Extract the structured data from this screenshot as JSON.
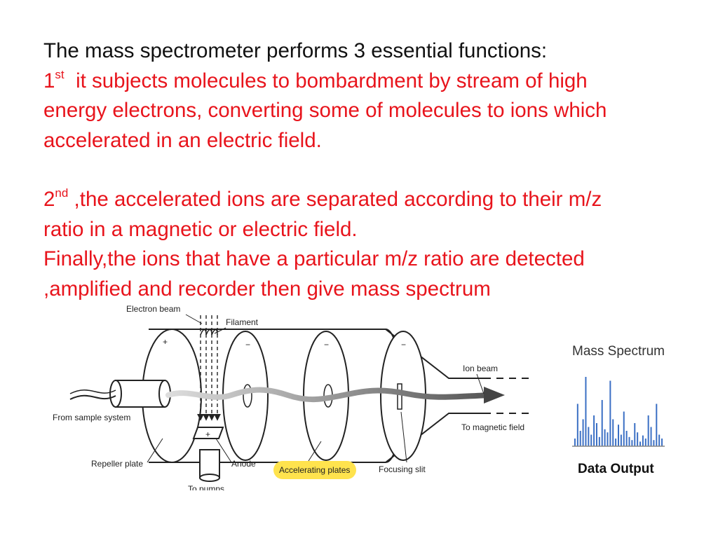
{
  "text": {
    "intro": "The mass spectrometer performs 3 essential functions:",
    "first": {
      "num": "1",
      "sup": "st",
      "line1": "it subjects molecules to bombardment by stream of high",
      "line2": "energy electrons, converting some of molecules to ions which"
    },
    "first_tail": "accelerated in an electric field.",
    "second": {
      "num": "2",
      "sup": "nd",
      "line1": ",the accelerated ions are separated according to their m/z"
    },
    "second_tail": "ratio in a magnetic or electric field.",
    "finally": {
      "line1": "Finally,the ions that have a particular m/z ratio are detected",
      "line2": ",amplified and recorder then give mass spectrum"
    }
  },
  "diagram": {
    "labels": {
      "electron_beam": "Electron beam",
      "filament": "Filament",
      "ion_beam": "Ion beam",
      "from_sample": "From sample system",
      "to_magnetic": "To magnetic field",
      "repeller": "Repeller plate",
      "anode": "Anode",
      "accelerating": "Accelerating plates",
      "focusing": "Focusing slit",
      "to_pumps": "To pumps"
    },
    "charges": {
      "repeller": "+",
      "plate1": "−",
      "plate2": "−",
      "plate3": "−",
      "anode": "+"
    },
    "highlight_color": "#ffe34d"
  },
  "spectrum": {
    "title": "Mass Spectrum",
    "output": "Data Output",
    "peak_color": "#3a6fc4",
    "peaks": [
      0.1,
      0.55,
      0.2,
      0.35,
      0.9,
      0.25,
      0.15,
      0.4,
      0.3,
      0.12,
      0.6,
      0.22,
      0.18,
      0.85,
      0.35,
      0.1,
      0.28,
      0.15,
      0.45,
      0.2,
      0.12,
      0.08,
      0.3,
      0.18,
      0.06,
      0.14,
      0.1,
      0.4,
      0.25,
      0.08,
      0.55,
      0.15,
      0.1
    ]
  }
}
